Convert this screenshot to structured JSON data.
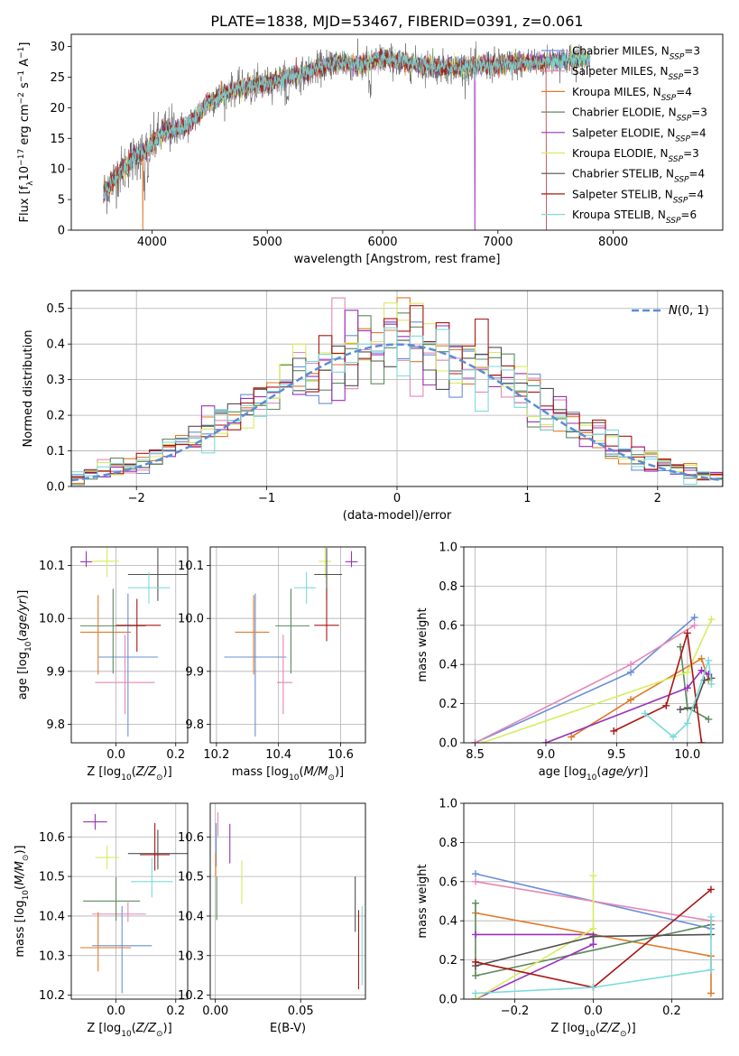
{
  "title": "PLATE=1838, MJD=53467, FIBERID=0391, z=0.061",
  "colors": [
    "#6a8fd8",
    "#e388b8",
    "#e07a2a",
    "#5c8a5c",
    "#9a32b8",
    "#d8ec60",
    "#505050",
    "#aa1515",
    "#7cdada"
  ],
  "models": [
    "Chabrier MILES",
    "Salpeter MILES",
    "Kroupa MILES",
    "Chabrier ELODIE",
    "Salpeter ELODIE",
    "Kroupa ELODIE",
    "Chabrier STELIB",
    "Salpeter STELIB",
    "Kroupa STELIB"
  ],
  "chart_data": [
    {
      "type": "line",
      "id": "spectrum",
      "xlabel": "wavelength [Angstrom, rest frame]",
      "ylabel": "Flux [f_λ 10^-17 erg cm^-2 s^-1 A^-1]",
      "xlim": [
        3300,
        8950
      ],
      "ylim": [
        0,
        32
      ],
      "xticks": [
        4000,
        5000,
        6000,
        7000,
        8000
      ],
      "yticks": [
        0,
        5,
        10,
        15,
        20,
        25,
        30
      ],
      "grid": false,
      "legend": "top-right",
      "legend_entries": [
        "Chabrier MILES, N_SSP=3",
        "Salpeter MILES, N_SSP=3",
        "Kroupa MILES, N_SSP=4",
        "Chabrier ELODIE, N_SSP=3",
        "Salpeter ELODIE, N_SSP=4",
        "Kroupa ELODIE, N_SSP=3",
        "Chabrier STELIB, N_SSP=4",
        "Salpeter STELIB, N_SSP=4",
        "Kroupa STELIB, N_SSP=6"
      ],
      "continuum": {
        "x": [
          3580,
          3700,
          3850,
          3950,
          4100,
          4300,
          4500,
          4700,
          5000,
          5300,
          5600,
          5800,
          6000,
          6300,
          6600,
          7000,
          7400,
          7700,
          7800
        ],
        "y": [
          6,
          9,
          12,
          13,
          16,
          17,
          21,
          23,
          24,
          25.5,
          27.5,
          27,
          28,
          27,
          26.5,
          27,
          27.5,
          28,
          28
        ]
      },
      "dropouts": [
        {
          "x": 3920,
          "series": "Kroupa MILES"
        },
        {
          "x": 6800,
          "series": "Salpeter ELODIE"
        },
        {
          "x": 7420,
          "series": "Salpeter STELIB"
        }
      ]
    },
    {
      "type": "bar",
      "id": "residuals",
      "xlabel": "(data-model)/error",
      "ylabel": "Normed distribution",
      "xlim": [
        -2.5,
        2.5
      ],
      "ylim": [
        0,
        0.55
      ],
      "xticks": [
        -2,
        -1,
        0,
        1,
        2
      ],
      "yticks": [
        0,
        0.1,
        0.2,
        0.3,
        0.4,
        0.5
      ],
      "grid": true,
      "legend": "top-right",
      "legend_entries": [
        "N(0,1)"
      ],
      "bin_width": 0.1
    },
    {
      "type": "scatter",
      "id": "age-vs-Z",
      "xlabel": "Z [log10(Z/Z☉)]",
      "ylabel": "age  [log10(age/yr)]",
      "xlim": [
        -0.15,
        0.24
      ],
      "ylim": [
        9.765,
        10.135
      ],
      "xticks": [
        0.0,
        0.2
      ],
      "yticks": [
        9.8,
        9.9,
        10.0,
        10.1
      ],
      "grid": true,
      "points": [
        {
          "x": 0.04,
          "y": 9.927,
          "xerr": [
            0.1,
            0.1
          ],
          "yerr": [
            0.15,
            0.12
          ]
        },
        {
          "x": 0.03,
          "y": 9.879,
          "xerr": [
            0.1,
            0.1
          ],
          "yerr": [
            0.06,
            0.09
          ]
        },
        {
          "x": -0.06,
          "y": 9.974,
          "xerr": [
            0.06,
            0.11
          ],
          "yerr": [
            0.08,
            0.07
          ]
        },
        {
          "x": -0.01,
          "y": 9.986,
          "xerr": [
            0.11,
            0.11
          ],
          "yerr": [
            0.09,
            0.07
          ]
        },
        {
          "x": -0.1,
          "y": 10.107,
          "xerr": [
            0.02,
            0.02
          ],
          "yerr": [
            0.01,
            0.02
          ]
        },
        {
          "x": -0.03,
          "y": 10.108,
          "xerr": [
            0.05,
            0.04
          ],
          "yerr": [
            0.03,
            0.03
          ]
        },
        {
          "x": 0.14,
          "y": 10.083,
          "xerr": [
            0.1,
            0.1
          ],
          "yerr": [
            0.05,
            0.05
          ]
        },
        {
          "x": 0.07,
          "y": 9.987,
          "xerr": [
            0.07,
            0.08
          ],
          "yerr": [
            0.05,
            0.05
          ]
        },
        {
          "x": 0.11,
          "y": 10.058,
          "xerr": [
            0.07,
            0.07
          ],
          "yerr": [
            0.03,
            0.03
          ]
        }
      ]
    },
    {
      "type": "scatter",
      "id": "age-vs-mass",
      "xlabel": "mass [log10(M/M☉)]",
      "ylabel": "",
      "xlim": [
        10.18,
        10.68
      ],
      "ylim": [
        9.765,
        10.135
      ],
      "xticks": [
        10.2,
        10.4,
        10.6
      ],
      "yticks": [
        9.8,
        9.9,
        10.0,
        10.1
      ],
      "grid": true,
      "points": [
        {
          "x": 10.325,
          "y": 9.927,
          "xerr": [
            0.1,
            0.1
          ],
          "yerr": [
            0.15,
            0.12
          ]
        },
        {
          "x": 10.415,
          "y": 9.879,
          "xerr": [
            0.02,
            0.03
          ],
          "yerr": [
            0.06,
            0.09
          ]
        },
        {
          "x": 10.32,
          "y": 9.974,
          "xerr": [
            0.06,
            0.05
          ],
          "yerr": [
            0.08,
            0.07
          ]
        },
        {
          "x": 10.44,
          "y": 9.986,
          "xerr": [
            0.05,
            0.06
          ],
          "yerr": [
            0.09,
            0.07
          ]
        },
        {
          "x": 10.635,
          "y": 10.107,
          "xerr": [
            0.02,
            0.02
          ],
          "yerr": [
            0.01,
            0.02
          ]
        },
        {
          "x": 10.55,
          "y": 10.108,
          "xerr": [
            0.02,
            0.02
          ],
          "yerr": [
            0.03,
            0.03
          ]
        },
        {
          "x": 10.555,
          "y": 10.083,
          "xerr": [
            0.04,
            0.05
          ],
          "yerr": [
            0.05,
            0.05
          ]
        },
        {
          "x": 10.555,
          "y": 9.987,
          "xerr": [
            0.04,
            0.04
          ],
          "yerr": [
            0.03,
            0.07
          ]
        },
        {
          "x": 10.49,
          "y": 10.058,
          "xerr": [
            0.04,
            0.03
          ],
          "yerr": [
            0.03,
            0.03
          ]
        }
      ]
    },
    {
      "type": "line",
      "id": "weight-vs-age",
      "xlabel": "age  [log10(age/yr)]",
      "ylabel": "mass weight",
      "xlim": [
        8.42,
        10.25
      ],
      "ylim": [
        0,
        1.0
      ],
      "xticks": [
        8.5,
        9.0,
        9.5,
        10.0
      ],
      "yticks": [
        0.0,
        0.2,
        0.4,
        0.6,
        0.8,
        1.0
      ],
      "grid": true,
      "series": [
        {
          "x": [
            8.5,
            9.6,
            10.05
          ],
          "y": [
            0.0,
            0.36,
            0.64
          ]
        },
        {
          "x": [
            8.5,
            9.6,
            10.05
          ],
          "y": [
            0.0,
            0.4,
            0.6
          ]
        },
        {
          "x": [
            9.18,
            9.6,
            10.1,
            10.15
          ],
          "y": [
            0.03,
            0.22,
            0.43,
            0.32
          ]
        },
        {
          "x": [
            9.95,
            10.0,
            10.15
          ],
          "y": [
            0.49,
            0.18,
            0.12
          ]
        },
        {
          "x": [
            9.0,
            10.0,
            10.1,
            10.15
          ],
          "y": [
            0.0,
            0.28,
            0.37,
            0.35
          ]
        },
        {
          "x": [
            8.55,
            10.0,
            10.17
          ],
          "y": [
            0.0,
            0.36,
            0.63
          ]
        },
        {
          "x": [
            9.95,
            10.05,
            10.12,
            10.17
          ],
          "y": [
            0.17,
            0.18,
            0.32,
            0.33
          ]
        },
        {
          "x": [
            9.48,
            9.85,
            10.0,
            10.1
          ],
          "y": [
            0.06,
            0.19,
            0.56,
            0.0
          ]
        },
        {
          "x": [
            9.7,
            9.9,
            10.0,
            10.15,
            10.17
          ],
          "y": [
            0.15,
            0.03,
            0.1,
            0.42,
            0.3
          ]
        }
      ]
    },
    {
      "type": "scatter",
      "id": "mass-vs-Z",
      "xlabel": "Z [log10(Z/Z☉)]",
      "ylabel": "mass [log10(M/M☉)]",
      "xlim": [
        -0.15,
        0.24
      ],
      "ylim": [
        10.19,
        10.685
      ],
      "xticks": [
        0.0,
        0.2
      ],
      "yticks": [
        10.2,
        10.3,
        10.4,
        10.5,
        10.6
      ],
      "grid": true,
      "points": [
        {
          "x": 0.02,
          "y": 10.325,
          "xerr": [
            0.1,
            0.1
          ],
          "yerr": [
            0.12,
            0.1
          ]
        },
        {
          "x": 0.04,
          "y": 10.405,
          "xerr": [
            0.12,
            0.06
          ],
          "yerr": [
            0.02,
            0.03
          ]
        },
        {
          "x": -0.06,
          "y": 10.32,
          "xerr": [
            0.06,
            0.11
          ],
          "yerr": [
            0.06,
            0.09
          ]
        },
        {
          "x": 0.0,
          "y": 10.438,
          "xerr": [
            0.11,
            0.08
          ],
          "yerr": [
            0.05,
            0.06
          ]
        },
        {
          "x": -0.07,
          "y": 10.638,
          "xerr": [
            0.04,
            0.04
          ],
          "yerr": [
            0.02,
            0.02
          ]
        },
        {
          "x": -0.03,
          "y": 10.548,
          "xerr": [
            0.04,
            0.04
          ],
          "yerr": [
            0.03,
            0.03
          ]
        },
        {
          "x": 0.14,
          "y": 10.558,
          "xerr": [
            0.1,
            0.1
          ],
          "yerr": [
            0.04,
            0.06
          ]
        },
        {
          "x": 0.13,
          "y": 10.555,
          "xerr": [
            0.05,
            0.05
          ],
          "yerr": [
            0.04,
            0.08
          ]
        },
        {
          "x": 0.12,
          "y": 10.487,
          "xerr": [
            0.07,
            0.07
          ],
          "yerr": [
            0.04,
            0.06
          ]
        }
      ]
    },
    {
      "type": "scatter",
      "id": "mass-vs-ebv",
      "xlabel": "E(B-V)",
      "ylabel": "",
      "xlim": [
        -0.003,
        0.088
      ],
      "ylim": [
        10.19,
        10.685
      ],
      "xticks": [
        0.0,
        0.05
      ],
      "yticks": [
        10.2,
        10.3,
        10.4,
        10.5,
        10.6
      ],
      "grid": true,
      "points": [
        {
          "x": 0.0005,
          "y": 10.585,
          "xerr": [
            0,
            0
          ],
          "yerr": [
            0.06,
            0.05
          ]
        },
        {
          "x": 0.0015,
          "y": 10.632,
          "xerr": [
            0,
            0
          ],
          "yerr": [
            0.03,
            0.03
          ]
        },
        {
          "x": 0.0002,
          "y": 10.53,
          "xerr": [
            0,
            0
          ],
          "yerr": [
            0.03,
            0.03
          ]
        },
        {
          "x": 0.0008,
          "y": 10.44,
          "xerr": [
            0,
            0
          ],
          "yerr": [
            0.05,
            0.06
          ]
        },
        {
          "x": 0.0085,
          "y": 10.583,
          "xerr": [
            0,
            0
          ],
          "yerr": [
            0.05,
            0.05
          ]
        },
        {
          "x": 0.0155,
          "y": 10.49,
          "xerr": [
            0,
            0
          ],
          "yerr": [
            0.06,
            0.05
          ]
        },
        {
          "x": 0.082,
          "y": 10.43,
          "xerr": [
            0,
            0
          ],
          "yerr": [
            0.07,
            0.07
          ]
        },
        {
          "x": 0.084,
          "y": 10.315,
          "xerr": [
            0,
            0
          ],
          "yerr": [
            0.1,
            0.1
          ]
        },
        {
          "x": 0.086,
          "y": 10.325,
          "xerr": [
            0,
            0
          ],
          "yerr": [
            0.1,
            0.1
          ]
        }
      ]
    },
    {
      "type": "line",
      "id": "weight-vs-Z",
      "xlabel": "Z [log10(Z/Z☉)]",
      "ylabel": "mass weight",
      "xlim": [
        -0.33,
        0.33
      ],
      "ylim": [
        0,
        1.0
      ],
      "xticks": [
        -0.2,
        0.0,
        0.2
      ],
      "yticks": [
        0.0,
        0.2,
        0.4,
        0.6,
        0.8,
        1.0
      ],
      "grid": true,
      "series": [
        {
          "x": [
            -0.3,
            0.3
          ],
          "y": [
            0.64,
            0.36
          ]
        },
        {
          "x": [
            -0.3,
            0.3
          ],
          "y": [
            0.6,
            0.4
          ]
        },
        {
          "x": [
            -0.3,
            0.3,
            0.3
          ],
          "y": [
            0.44,
            0.22,
            0.03
          ]
        },
        {
          "x": [
            -0.3,
            -0.3,
            0.3
          ],
          "y": [
            0.49,
            0.12,
            0.38
          ]
        },
        {
          "x": [
            -0.3,
            0.0,
            0.0,
            -0.3
          ],
          "y": [
            0.0,
            0.28,
            0.33,
            0.33
          ]
        },
        {
          "x": [
            -0.3,
            0.0,
            0.0
          ],
          "y": [
            0.0,
            0.36,
            0.63
          ]
        },
        {
          "x": [
            -0.3,
            0.0,
            0.3
          ],
          "y": [
            0.17,
            0.32,
            0.33
          ]
        },
        {
          "x": [
            -0.3,
            0.0,
            0.3
          ],
          "y": [
            0.19,
            0.06,
            0.56
          ]
        },
        {
          "x": [
            -0.3,
            0.0,
            0.3,
            0.3
          ],
          "y": [
            0.03,
            0.06,
            0.15,
            0.42
          ]
        }
      ]
    }
  ]
}
